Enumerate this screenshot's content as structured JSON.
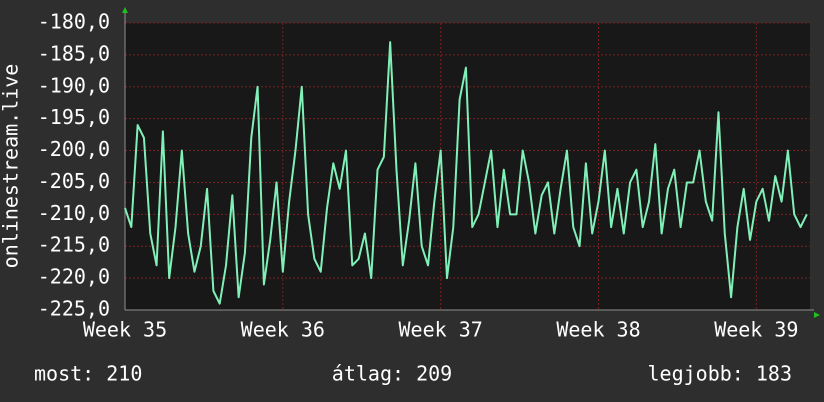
{
  "chart_data": {
    "type": "line",
    "y_label": "onlinestream.live",
    "x": [
      35,
      35.04,
      35.08,
      35.12,
      35.16,
      35.2,
      35.24,
      35.28,
      35.32,
      35.36,
      35.4,
      35.44,
      35.48,
      35.52,
      35.56,
      35.6,
      35.64,
      35.68,
      35.72,
      35.76,
      35.8,
      35.84,
      35.88,
      35.92,
      35.96,
      36,
      36.04,
      36.08,
      36.12,
      36.16,
      36.2,
      36.24,
      36.28,
      36.32,
      36.36,
      36.4,
      36.44,
      36.48,
      36.52,
      36.56,
      36.6,
      36.64,
      36.68,
      36.72,
      36.76,
      36.8,
      36.84,
      36.88,
      36.92,
      36.96,
      37,
      37.04,
      37.08,
      37.12,
      37.16,
      37.2,
      37.24,
      37.28,
      37.32,
      37.36,
      37.4,
      37.44,
      37.48,
      37.52,
      37.56,
      37.6,
      37.64,
      37.68,
      37.72,
      37.76,
      37.8,
      37.84,
      37.88,
      37.92,
      37.96,
      38,
      38.04,
      38.08,
      38.12,
      38.16,
      38.2,
      38.24,
      38.28,
      38.32,
      38.36,
      38.4,
      38.44,
      38.48,
      38.52,
      38.56,
      38.6,
      38.64,
      38.68,
      38.72,
      38.76,
      38.8,
      38.84,
      38.88,
      38.92,
      38.96,
      39,
      39.04,
      39.08,
      39.12,
      39.16,
      39.2,
      39.24,
      39.28,
      39.32
    ],
    "series": [
      {
        "name": "onlinestream.live",
        "color": "#80f0b8",
        "values": [
          -209,
          -212,
          -196,
          -198,
          -213,
          -218,
          -197,
          -220,
          -212,
          -200,
          -213,
          -219,
          -215,
          -206,
          -222,
          -224,
          -218,
          -207,
          -223,
          -216,
          -198,
          -190,
          -221,
          -214,
          -205,
          -219,
          -208,
          -200,
          -190,
          -210,
          -217,
          -219,
          -209,
          -202,
          -206,
          -200,
          -218,
          -217,
          -213,
          -220,
          -203,
          -201,
          -183,
          -203,
          -218,
          -211,
          -202,
          -215,
          -218,
          -208,
          -200,
          -220,
          -212,
          -192,
          -187,
          -212,
          -210,
          -205,
          -200,
          -212,
          -203,
          -210,
          -210,
          -200,
          -205,
          -213,
          -207,
          -205,
          -213,
          -206,
          -200,
          -212,
          -215,
          -202,
          -213,
          -208,
          -200,
          -212,
          -206,
          -213,
          -205,
          -203,
          -212,
          -208,
          -199,
          -213,
          -206,
          -203,
          -212,
          -205,
          -205,
          -200,
          -208,
          -211,
          -194,
          -213,
          -223,
          -212,
          -206,
          -214,
          -208,
          -206,
          -211,
          -204,
          -208,
          -200,
          -210,
          -212,
          -210
        ]
      }
    ],
    "xlim": [
      35,
      39.34
    ],
    "xticks": [
      {
        "value": 35,
        "label": "Week 35"
      },
      {
        "value": 36,
        "label": "Week 36"
      },
      {
        "value": 37,
        "label": "Week 37"
      },
      {
        "value": 38,
        "label": "Week 38"
      },
      {
        "value": 39,
        "label": "Week 39"
      }
    ],
    "ylim": [
      -225,
      -180
    ],
    "yticks": [
      {
        "value": -225,
        "label": "-225,0"
      },
      {
        "value": -220,
        "label": "-220,0"
      },
      {
        "value": -215,
        "label": "-215,0"
      },
      {
        "value": -210,
        "label": "-210,0"
      },
      {
        "value": -205,
        "label": "-205,0"
      },
      {
        "value": -200,
        "label": "-200,0"
      },
      {
        "value": -195,
        "label": "-195,0"
      },
      {
        "value": -190,
        "label": "-190,0"
      },
      {
        "value": -185,
        "label": "-185,0"
      },
      {
        "value": -180,
        "label": "-180,0"
      }
    ],
    "grid": true,
    "footer": [
      "most: 210",
      "átlag: 209",
      "legjobb: 183"
    ]
  }
}
